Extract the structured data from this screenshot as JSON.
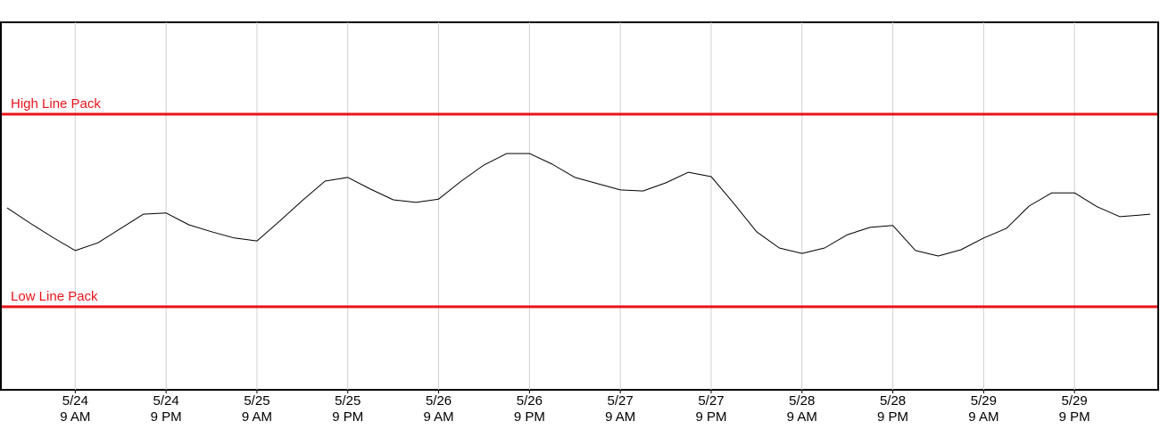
{
  "chart_data": {
    "type": "line",
    "x": [
      "5/24 12 AM",
      "5/24 3 AM",
      "5/24 6 AM",
      "5/24 9 AM",
      "5/24 12 PM",
      "5/24 3 PM",
      "5/24 6 PM",
      "5/24 9 PM",
      "5/25 12 AM",
      "5/25 3 AM",
      "5/25 6 AM",
      "5/25 9 AM",
      "5/25 12 PM",
      "5/25 3 PM",
      "5/25 6 PM",
      "5/25 9 PM",
      "5/26 12 AM",
      "5/26 3 AM",
      "5/26 6 AM",
      "5/26 9 AM",
      "5/26 12 PM",
      "5/26 3 PM",
      "5/26 6 PM",
      "5/26 9 PM",
      "5/27 12 AM",
      "5/27 3 AM",
      "5/27 6 AM",
      "5/27 9 AM",
      "5/27 12 PM",
      "5/27 3 PM",
      "5/27 6 PM",
      "5/27 9 PM",
      "5/28 12 AM",
      "5/28 3 AM",
      "5/28 6 AM",
      "5/28 9 AM",
      "5/28 12 PM",
      "5/28 3 PM",
      "5/28 6 PM",
      "5/28 9 PM",
      "5/29 12 AM",
      "5/29 3 AM",
      "5/29 6 AM",
      "5/29 9 AM",
      "5/29 12 PM",
      "5/29 3 PM",
      "5/29 6 PM",
      "5/29 9 PM",
      "5/30 12 AM",
      "5/30 3 AM",
      "5/30 6 AM",
      "5/30 7 AM"
    ],
    "values": [
      49.5,
      45.4,
      41.5,
      37.9,
      40.0,
      43.9,
      47.8,
      48.1,
      44.9,
      43.0,
      41.3,
      40.5,
      45.9,
      51.5,
      56.8,
      57.8,
      54.6,
      51.7,
      51.0,
      51.9,
      56.8,
      61.2,
      64.3,
      64.3,
      61.4,
      57.8,
      56.1,
      54.4,
      54.1,
      56.3,
      59.2,
      58.0,
      50.7,
      43.0,
      38.6,
      37.1,
      38.6,
      42.2,
      44.2,
      44.7,
      37.9,
      36.4,
      38.1,
      41.3,
      43.9,
      50.0,
      53.6,
      53.6,
      49.8,
      47.1,
      47.6,
      47.8
    ],
    "color": "#000000",
    "xlim": [
      "5/24 12 AM",
      "5/30 7 AM"
    ],
    "xticks": [
      "5/24 9 AM",
      "5/24 9 PM",
      "5/25 9 AM",
      "5/25 9 PM",
      "5/26 9 AM",
      "5/26 9 PM",
      "5/27 9 AM",
      "5/27 9 PM",
      "5/28 9 AM",
      "5/28 9 PM",
      "5/29 9 AM",
      "5/29 9 PM"
    ],
    "ylim": [
      0,
      100
    ],
    "grid": true,
    "reference_lines": [
      {
        "label": "High Line Pack",
        "value": 75,
        "color": "#e8141a"
      },
      {
        "label": "Low Line Pack",
        "value": 22.6,
        "color": "#e8141a"
      }
    ]
  }
}
